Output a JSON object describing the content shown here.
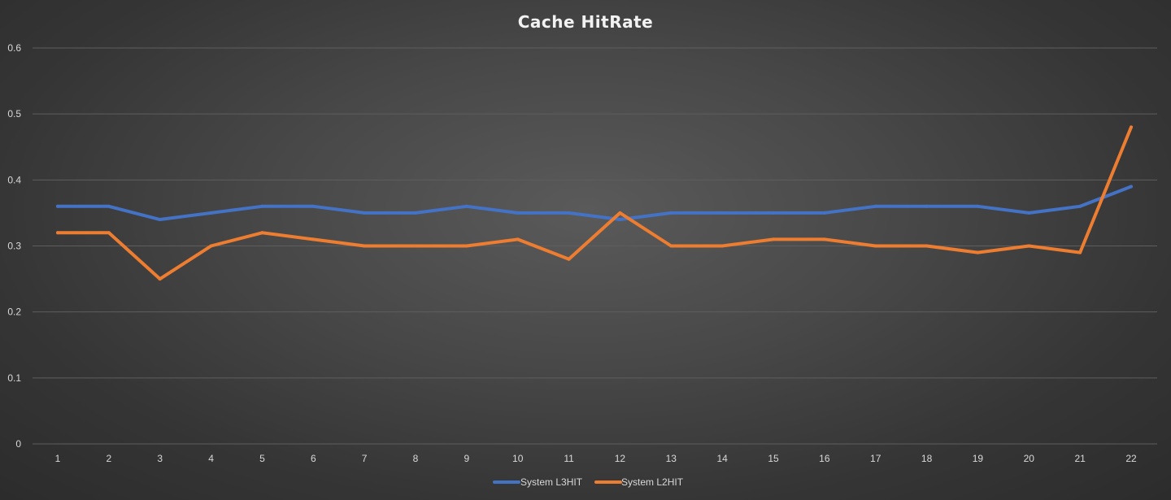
{
  "chart_data": {
    "type": "line",
    "title": "Cache HitRate",
    "xlabel": "",
    "ylabel": "",
    "x": [
      "1",
      "2",
      "3",
      "4",
      "5",
      "6",
      "7",
      "8",
      "9",
      "10",
      "11",
      "12",
      "13",
      "14",
      "15",
      "16",
      "17",
      "18",
      "19",
      "20",
      "21",
      "22"
    ],
    "ylim": [
      0,
      0.6
    ],
    "yticks": [
      "0",
      "0.1",
      "0.2",
      "0.3",
      "0.4",
      "0.5",
      "0.6"
    ],
    "grid": true,
    "legend_position": "bottom",
    "series": [
      {
        "name": "System L3HIT",
        "color": "#4472c4",
        "values": [
          0.36,
          0.36,
          0.34,
          0.35,
          0.36,
          0.36,
          0.35,
          0.35,
          0.36,
          0.35,
          0.35,
          0.34,
          0.35,
          0.35,
          0.35,
          0.35,
          0.36,
          0.36,
          0.36,
          0.35,
          0.36,
          0.39
        ]
      },
      {
        "name": "System L2HIT",
        "color": "#ed7d31",
        "values": [
          0.32,
          0.32,
          0.25,
          0.3,
          0.32,
          0.31,
          0.3,
          0.3,
          0.3,
          0.31,
          0.28,
          0.35,
          0.3,
          0.3,
          0.31,
          0.31,
          0.3,
          0.3,
          0.29,
          0.3,
          0.29,
          0.48
        ]
      }
    ]
  }
}
